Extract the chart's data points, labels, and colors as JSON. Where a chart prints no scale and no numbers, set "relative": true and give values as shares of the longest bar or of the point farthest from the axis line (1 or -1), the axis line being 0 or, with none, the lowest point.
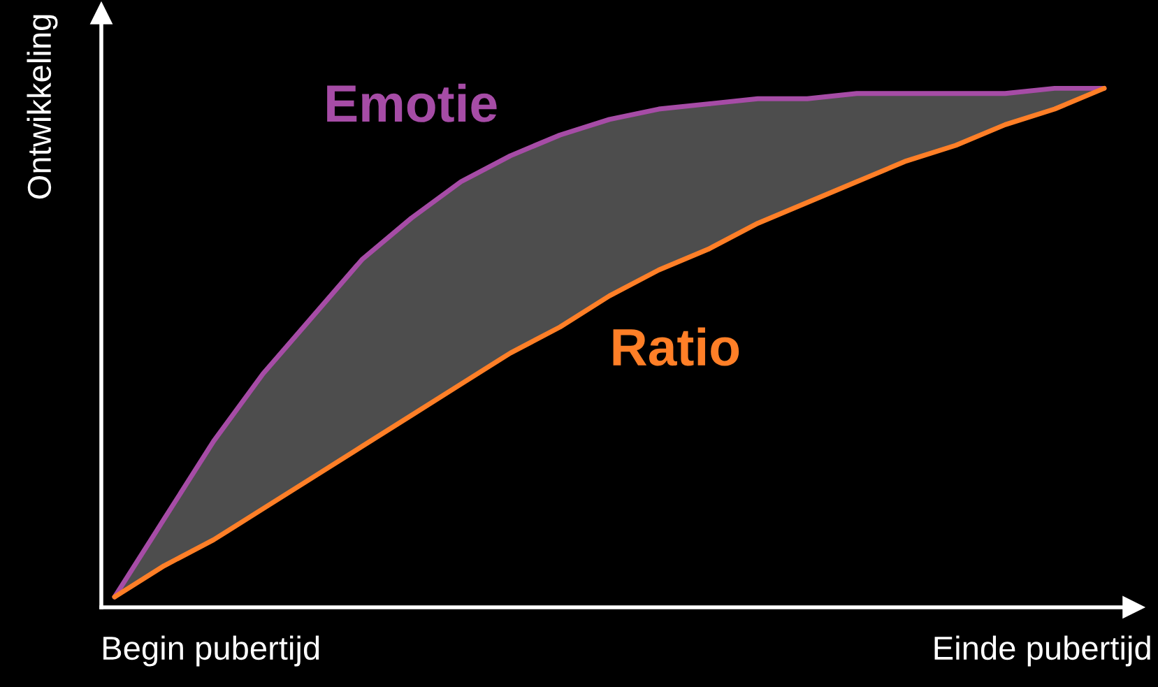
{
  "chart_data": {
    "type": "line",
    "relative": true,
    "ylabel": "Ontwikkeling",
    "categories": [
      null,
      null,
      null,
      null,
      null,
      null,
      null,
      null,
      null,
      null,
      null,
      null,
      null,
      null,
      null,
      null,
      null,
      null,
      null,
      null,
      null
    ],
    "annotations": [
      "Begin pubertijd",
      "Einde pubertijd"
    ],
    "series": [
      {
        "name": "Emotie",
        "color": "#a64ca6",
        "values": [
          0.02,
          0.17,
          0.32,
          0.45,
          0.56,
          0.67,
          0.75,
          0.82,
          0.87,
          0.91,
          0.94,
          0.96,
          0.97,
          0.98,
          0.98,
          0.99,
          0.99,
          0.99,
          0.99,
          1.0,
          1.0
        ]
      },
      {
        "name": "Ratio",
        "color": "#ff7f27",
        "values": [
          0.02,
          0.08,
          0.13,
          0.19,
          0.25,
          0.31,
          0.37,
          0.43,
          0.49,
          0.54,
          0.6,
          0.65,
          0.69,
          0.74,
          0.78,
          0.82,
          0.86,
          0.89,
          0.93,
          0.96,
          1.0
        ]
      }
    ],
    "grid": false,
    "legend": false,
    "marker": "none",
    "line_style": "solid"
  }
}
